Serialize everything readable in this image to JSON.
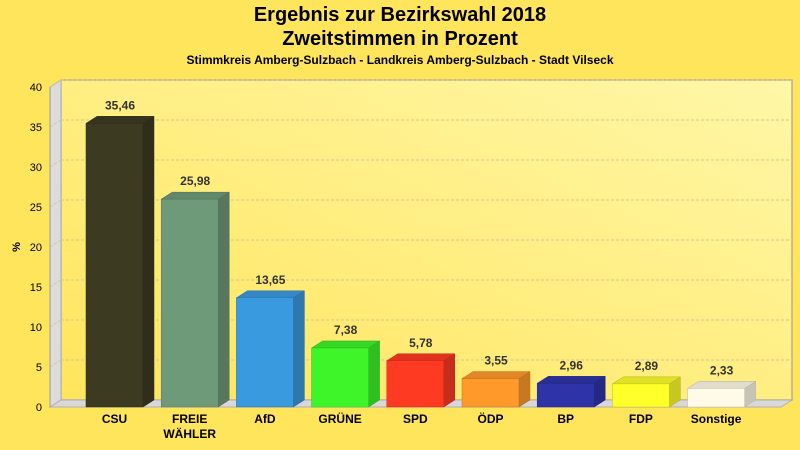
{
  "chart_data": {
    "type": "bar",
    "title": "Ergebnis zur Bezirkswahl 2018",
    "subtitle": "Zweitstimmen in Prozent",
    "subsubtitle": "Stimmkreis Amberg-Sulzbach - Landkreis Amberg-Sulzbach - Stadt Vilseck",
    "xlabel": "",
    "ylabel": "%",
    "ylim": [
      0,
      40
    ],
    "yticks": [
      "0",
      "5",
      "10",
      "15",
      "20",
      "25",
      "30",
      "35",
      "40"
    ],
    "grid": true,
    "categories": [
      [
        "CSU"
      ],
      [
        "FREIE",
        "WÄHLER"
      ],
      [
        "AfD"
      ],
      [
        "GRÜNE"
      ],
      [
        "SPD"
      ],
      [
        "ÖDP"
      ],
      [
        "BP"
      ],
      [
        "FDP"
      ],
      [
        "Sonstige"
      ]
    ],
    "values": [
      35.46,
      25.98,
      13.65,
      7.38,
      5.78,
      3.55,
      2.96,
      2.89,
      2.33
    ],
    "value_labels": [
      "35,46",
      "25,98",
      "13,65",
      "7,38",
      "5,78",
      "3,55",
      "2,96",
      "2,89",
      "2,33"
    ],
    "colors": [
      "#3D3A22",
      "#6F9A7A",
      "#3A9AE0",
      "#3EF52A",
      "#FF3A22",
      "#FF9A2A",
      "#2E34A8",
      "#FFFF2A",
      "#FFFBE8"
    ]
  }
}
